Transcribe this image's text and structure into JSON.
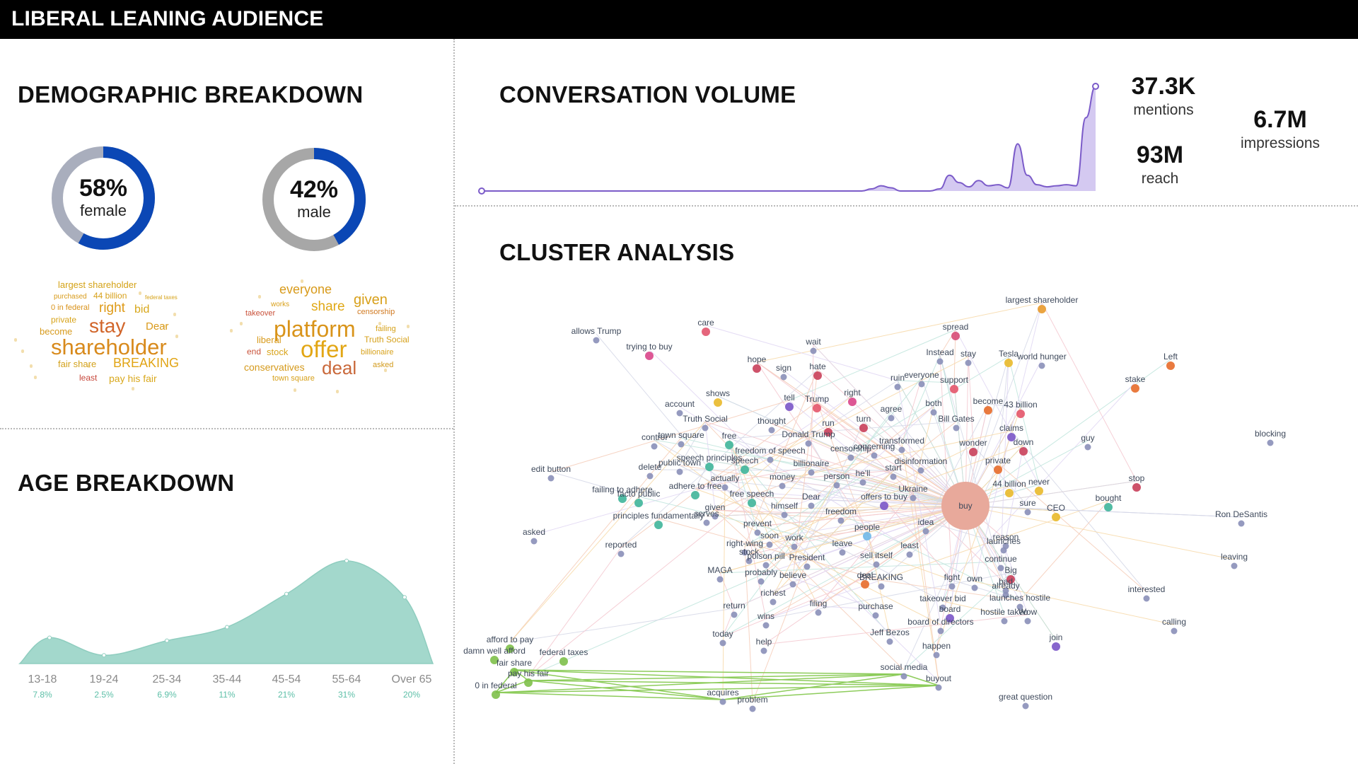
{
  "header": {
    "title": "LIBERAL LEANING AUDIENCE"
  },
  "demographic": {
    "title": "DEMOGRAPHIC BREAKDOWN",
    "female": {
      "pct": "58%",
      "label": "female",
      "value": 58,
      "color": "#0b47b5",
      "rest_color": "#a9aebd"
    },
    "male": {
      "pct": "42%",
      "label": "male",
      "value": 42,
      "color": "#0b47b5",
      "rest_color": "#a7a7a7"
    },
    "cloud_female": [
      {
        "t": "largest shareholder",
        "c": "#d4a216"
      },
      {
        "t": "purchased",
        "c": "#d89b1a"
      },
      {
        "t": "44 billion",
        "c": "#d7a11b"
      },
      {
        "t": "federal taxes",
        "c": "#d6a31a"
      },
      {
        "t": "0 in federal",
        "c": "#d9921a"
      },
      {
        "t": "right",
        "c": "#de9a17"
      },
      {
        "t": "bid",
        "c": "#d8a71b"
      },
      {
        "t": "private",
        "c": "#d8a41b"
      },
      {
        "t": "stay",
        "c": "#d1652a"
      },
      {
        "t": "Dear",
        "c": "#d99a1b"
      },
      {
        "t": "become",
        "c": "#d79a1c"
      },
      {
        "t": "shareholder",
        "c": "#d88a1c"
      },
      {
        "t": "fair share",
        "c": "#d3a21c"
      },
      {
        "t": "BREAKING",
        "c": "#e1a414"
      },
      {
        "t": "least",
        "c": "#c6473b"
      },
      {
        "t": "pay his fair",
        "c": "#d9a81c"
      }
    ],
    "cloud_male": [
      {
        "t": "everyone",
        "c": "#d89a1a"
      },
      {
        "t": "given",
        "c": "#d8a01a"
      },
      {
        "t": "share",
        "c": "#e0a815"
      },
      {
        "t": "censorship",
        "c": "#d17a22"
      },
      {
        "t": "takeover",
        "c": "#c9513a"
      },
      {
        "t": "works",
        "c": "#d9a01a"
      },
      {
        "t": "platform",
        "c": "#d9941a"
      },
      {
        "t": "failing",
        "c": "#d6a21b"
      },
      {
        "t": "liberal",
        "c": "#d89a1b"
      },
      {
        "t": "Truth Social",
        "c": "#d6a11b"
      },
      {
        "t": "end",
        "c": "#c9523a"
      },
      {
        "t": "stock",
        "c": "#d9a41b"
      },
      {
        "t": "offer",
        "c": "#e2a614"
      },
      {
        "t": "billionaire",
        "c": "#d8a21b"
      },
      {
        "t": "conservatives",
        "c": "#d59a1c"
      },
      {
        "t": "deal",
        "c": "#c9683a"
      },
      {
        "t": "asked",
        "c": "#d29a1c"
      },
      {
        "t": "town square",
        "c": "#d7a11b"
      }
    ]
  },
  "age": {
    "title": "AGE BREAKDOWN",
    "chart_data": {
      "type": "area",
      "categories": [
        "13-18",
        "19-24",
        "25-34",
        "35-44",
        "45-54",
        "55-64",
        "Over 65"
      ],
      "labels": [
        "7.8%",
        "2.5%",
        "6.9%",
        "11%",
        "21%",
        "31%",
        "20%"
      ],
      "values": [
        7.8,
        2.5,
        6.9,
        11,
        21,
        31,
        20
      ],
      "color": "#a3d8cc"
    }
  },
  "volume": {
    "title": "CONVERSATION VOLUME",
    "mentions": {
      "value": "37.3K",
      "label": "mentions"
    },
    "reach": {
      "value": "93M",
      "label": "reach"
    },
    "impressions": {
      "value": "6.7M",
      "label": "impressions"
    },
    "chart_data": {
      "type": "area",
      "values": [
        0,
        0,
        0,
        0,
        0,
        0,
        0,
        0,
        0,
        0,
        0,
        0,
        0,
        0,
        0,
        0,
        0,
        0,
        0,
        0,
        0,
        0,
        0,
        0,
        0,
        0,
        0,
        0,
        0,
        0,
        0,
        0,
        0,
        0,
        0,
        0,
        0,
        0,
        0,
        0,
        0.2,
        0.5,
        0.3,
        0,
        0,
        0,
        0,
        0.2,
        1.5,
        0.8,
        0.4,
        1,
        0.5,
        0.6,
        0.3,
        4.5,
        1.5,
        0.6,
        0.4,
        0.5,
        0.6,
        0.5,
        7,
        10
      ],
      "color": "#7b5bc9",
      "fill": "#cfc3ef"
    }
  },
  "cluster": {
    "title": "CLUSTER ANALYSIS",
    "hub": {
      "label": "buy",
      "color": "#e8a99b"
    },
    "nodes": [
      {
        "t": "largest shareholder",
        "c": "#e99a2b"
      },
      {
        "t": "allows Trump",
        "c": "#8a8fb8"
      },
      {
        "t": "care",
        "c": "#e2556e"
      },
      {
        "t": "spread",
        "c": "#d74c76"
      },
      {
        "t": "trying to buy",
        "c": "#d9458a"
      },
      {
        "t": "wait",
        "c": "#8a8fb8"
      },
      {
        "t": "Instead",
        "c": "#8a8fb8"
      },
      {
        "t": "stay",
        "c": "#8a8fb8"
      },
      {
        "t": "Tesla",
        "c": "#e9b92a"
      },
      {
        "t": "world hunger",
        "c": "#8a8fb8"
      },
      {
        "t": "Left",
        "c": "#e76b2a"
      },
      {
        "t": "hope",
        "c": "#c93f5a"
      },
      {
        "t": "sign",
        "c": "#8a8fb8"
      },
      {
        "t": "hate",
        "c": "#c93f5a"
      },
      {
        "t": "ruin",
        "c": "#8a8fb8"
      },
      {
        "t": "everyone",
        "c": "#8a8fb8"
      },
      {
        "t": "support",
        "c": "#e4556a"
      },
      {
        "t": "stake",
        "c": "#e76b2a"
      },
      {
        "t": "shows",
        "c": "#e9b92a"
      },
      {
        "t": "tell",
        "c": "#7a55c8"
      },
      {
        "t": "Trump",
        "c": "#e4556a"
      },
      {
        "t": "right",
        "c": "#d9458a"
      },
      {
        "t": "account",
        "c": "#8a8fb8"
      },
      {
        "t": "both",
        "c": "#8a8fb8"
      },
      {
        "t": "become",
        "c": "#e76b2a"
      },
      {
        "t": "43 billion",
        "c": "#e4556a"
      },
      {
        "t": "Truth Social",
        "c": "#8a8fb8"
      },
      {
        "t": "thought",
        "c": "#8a8fb8"
      },
      {
        "t": "run",
        "c": "#c93f5a"
      },
      {
        "t": "turn",
        "c": "#c93f5a"
      },
      {
        "t": "agree",
        "c": "#8a8fb8"
      },
      {
        "t": "Bill Gates",
        "c": "#8a8fb8"
      },
      {
        "t": "claims",
        "c": "#7a55c8"
      },
      {
        "t": "Donald Trump",
        "c": "#8a8fb8"
      },
      {
        "t": "control",
        "c": "#8a8fb8"
      },
      {
        "t": "town square",
        "c": "#8a8fb8"
      },
      {
        "t": "free",
        "c": "#3fb59a"
      },
      {
        "t": "transformed",
        "c": "#8a8fb8"
      },
      {
        "t": "wonder",
        "c": "#c93f5a"
      },
      {
        "t": "down",
        "c": "#c93f5a"
      },
      {
        "t": "guy",
        "c": "#8a8fb8"
      },
      {
        "t": "blocking",
        "c": "#8a8fb8"
      },
      {
        "t": "freedom of speech",
        "c": "#8a8fb8"
      },
      {
        "t": "censorship",
        "c": "#8a8fb8"
      },
      {
        "t": "concerning",
        "c": "#8a8fb8"
      },
      {
        "t": "speech principles",
        "c": "#3fb59a"
      },
      {
        "t": "speech",
        "c": "#3fb59a"
      },
      {
        "t": "billionaire",
        "c": "#8a8fb8"
      },
      {
        "t": "disinformation",
        "c": "#8a8fb8"
      },
      {
        "t": "private",
        "c": "#e76b2a"
      },
      {
        "t": "edit button",
        "c": "#8a8fb8"
      },
      {
        "t": "delete",
        "c": "#8a8fb8"
      },
      {
        "t": "public town",
        "c": "#8a8fb8"
      },
      {
        "t": "start",
        "c": "#8a8fb8"
      },
      {
        "t": "he'll",
        "c": "#8a8fb8"
      },
      {
        "t": "actually",
        "c": "#8a8fb8"
      },
      {
        "t": "money",
        "c": "#8a8fb8"
      },
      {
        "t": "person",
        "c": "#8a8fb8"
      },
      {
        "t": "never",
        "c": "#e9b92a"
      },
      {
        "t": "stop",
        "c": "#c93f5a"
      },
      {
        "t": "failing to adhere",
        "c": "#3fb59a"
      },
      {
        "t": "adhere to free",
        "c": "#3fb59a"
      },
      {
        "t": "Ukraine",
        "c": "#8a8fb8"
      },
      {
        "t": "44 billion",
        "c": "#e9b92a"
      },
      {
        "t": "bought",
        "c": "#3fb59a"
      },
      {
        "t": "facto public",
        "c": "#3fb59a"
      },
      {
        "t": "free speech",
        "c": "#3fb59a"
      },
      {
        "t": "Dear",
        "c": "#8a8fb8"
      },
      {
        "t": "offers to buy",
        "c": "#7a55c8"
      },
      {
        "t": "sure",
        "c": "#8a8fb8"
      },
      {
        "t": "CEO",
        "c": "#e9b92a"
      },
      {
        "t": "given",
        "c": "#8a8fb8"
      },
      {
        "t": "himself",
        "c": "#8a8fb8"
      },
      {
        "t": "serves",
        "c": "#8a8fb8"
      },
      {
        "t": "freedom",
        "c": "#8a8fb8"
      },
      {
        "t": "Ron DeSantis",
        "c": "#8a8fb8"
      },
      {
        "t": "principles fundamentally",
        "c": "#3fb59a"
      },
      {
        "t": "idea",
        "c": "#8a8fb8"
      },
      {
        "t": "prevent",
        "c": "#8a8fb8"
      },
      {
        "t": "people",
        "c": "#6fb8e8"
      },
      {
        "t": "asked",
        "c": "#8a8fb8"
      },
      {
        "t": "soon",
        "c": "#8a8fb8"
      },
      {
        "t": "work",
        "c": "#8a8fb8"
      },
      {
        "t": "reason",
        "c": "#8a8fb8"
      },
      {
        "t": "launches",
        "c": "#8a8fb8"
      },
      {
        "t": "right-wing",
        "c": "#8a8fb8"
      },
      {
        "t": "leave",
        "c": "#8a8fb8"
      },
      {
        "t": "least",
        "c": "#8a8fb8"
      },
      {
        "t": "reported",
        "c": "#8a8fb8"
      },
      {
        "t": "stock",
        "c": "#8a8fb8"
      },
      {
        "t": "sell itself",
        "c": "#8a8fb8"
      },
      {
        "t": "poison pill",
        "c": "#8a8fb8"
      },
      {
        "t": "President",
        "c": "#8a8fb8"
      },
      {
        "t": "continue",
        "c": "#8a8fb8"
      },
      {
        "t": "leaving",
        "c": "#8a8fb8"
      },
      {
        "t": "Big",
        "c": "#c93f5a"
      },
      {
        "t": "MAGA",
        "c": "#8a8fb8"
      },
      {
        "t": "probably",
        "c": "#8a8fb8"
      },
      {
        "t": "believe",
        "c": "#8a8fb8"
      },
      {
        "t": "deal",
        "c": "#e76b2a"
      },
      {
        "t": "BREAKING",
        "c": "#8a8fb8"
      },
      {
        "t": "fight",
        "c": "#8a8fb8"
      },
      {
        "t": "own",
        "c": "#8a8fb8"
      },
      {
        "t": "bad",
        "c": "#8a8fb8"
      },
      {
        "t": "already",
        "c": "#8a8fb8"
      },
      {
        "t": "interested",
        "c": "#8a8fb8"
      },
      {
        "t": "richest",
        "c": "#8a8fb8"
      },
      {
        "t": "takeover bid",
        "c": "#8a8fb8"
      },
      {
        "t": "launches hostile",
        "c": "#8a8fb8"
      },
      {
        "t": "filing",
        "c": "#8a8fb8"
      },
      {
        "t": "purchase",
        "c": "#8a8fb8"
      },
      {
        "t": "return",
        "c": "#8a8fb8"
      },
      {
        "t": "board",
        "c": "#7a55c8"
      },
      {
        "t": "hostile takeo",
        "c": "#8a8fb8"
      },
      {
        "t": "Wow",
        "c": "#8a8fb8"
      },
      {
        "t": "wins",
        "c": "#8a8fb8"
      },
      {
        "t": "board of directors",
        "c": "#8a8fb8"
      },
      {
        "t": "calling",
        "c": "#8a8fb8"
      },
      {
        "t": "today",
        "c": "#8a8fb8"
      },
      {
        "t": "Jeff Bezos",
        "c": "#8a8fb8"
      },
      {
        "t": "join",
        "c": "#7a55c8"
      },
      {
        "t": "help",
        "c": "#8a8fb8"
      },
      {
        "t": "happen",
        "c": "#8a8fb8"
      },
      {
        "t": "afford to pay",
        "c": "#7ec04a"
      },
      {
        "t": "damn well afford",
        "c": "#7ec04a"
      },
      {
        "t": "federal taxes",
        "c": "#7ec04a"
      },
      {
        "t": "fair share",
        "c": "#7ec04a"
      },
      {
        "t": "pay his fair",
        "c": "#7ec04a"
      },
      {
        "t": "0 in federal",
        "c": "#7ec04a"
      },
      {
        "t": "social media",
        "c": "#8a8fb8"
      },
      {
        "t": "buyout",
        "c": "#8a8fb8"
      },
      {
        "t": "acquires",
        "c": "#8a8fb8"
      },
      {
        "t": "problem",
        "c": "#8a8fb8"
      },
      {
        "t": "great question",
        "c": "#8a8fb8"
      }
    ]
  }
}
